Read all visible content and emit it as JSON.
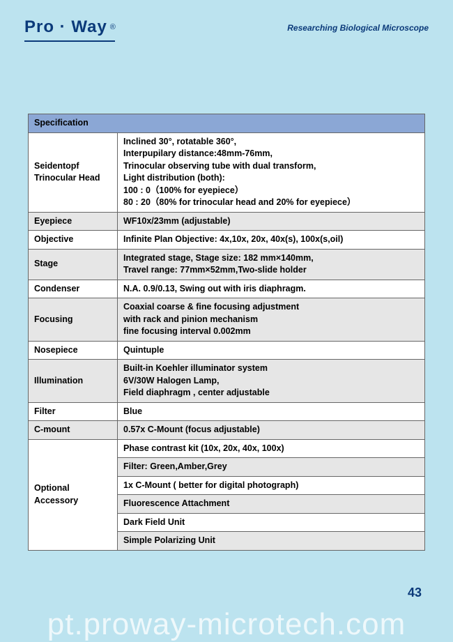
{
  "logo": {
    "brand": "Pro · Way"
  },
  "subtitle": "Researching Biological Microscope",
  "spec_title": "Specification",
  "rows": {
    "head_label": "Seidentopf\nTrinocular Head",
    "head_value": "Inclined 30°, rotatable 360°,\nInterpupilary distance:48mm-76mm,\nTrinocular observing tube with dual transform,\nLight distribution (both):\n100 : 0（100% for eyepiece）\n80 : 20（80% for trinocular head and 20% for eyepiece）",
    "eyepiece_label": "Eyepiece",
    "eyepiece_value": "WF10x/23mm (adjustable)",
    "objective_label": "Objective",
    "objective_value": "Infinite Plan Objective: 4x,10x, 20x, 40x(s), 100x(s,oil)",
    "stage_label": "Stage",
    "stage_value": "Integrated stage, Stage size: 182 mm×140mm,\nTravel range: 77mm×52mm,Two-slide holder",
    "condenser_label": "Condenser",
    "condenser_value": "N.A. 0.9/0.13, Swing out with iris diaphragm.",
    "focusing_label": "Focusing",
    "focusing_value": "Coaxial coarse & fine focusing adjustment\nwith rack and pinion mechanism\nfine focusing interval 0.002mm",
    "nosepiece_label": "Nosepiece",
    "nosepiece_value": "Quintuple",
    "illum_label": "Illumination",
    "illum_value": "Built-in Koehler illuminator system\n6V/30W Halogen Lamp,\nField diaphragm , center adjustable",
    "filter_label": "Filter",
    "filter_value": "Blue",
    "cmount_label": "C-mount",
    "cmount_value": "0.57x C-Mount (focus adjustable)",
    "optional_label": "Optional\nAccessory",
    "opt1": "Phase contrast kit (10x, 20x, 40x, 100x)",
    "opt2": "Filter: Green,Amber,Grey",
    "opt3": "1x C-Mount ( better for digital photograph)",
    "opt4": "Fluorescence Attachment",
    "opt5": "Dark Field Unit",
    "opt6": "Simple Polarizing Unit"
  },
  "page_num": "43",
  "watermark": "pt.proway-microtech.com"
}
